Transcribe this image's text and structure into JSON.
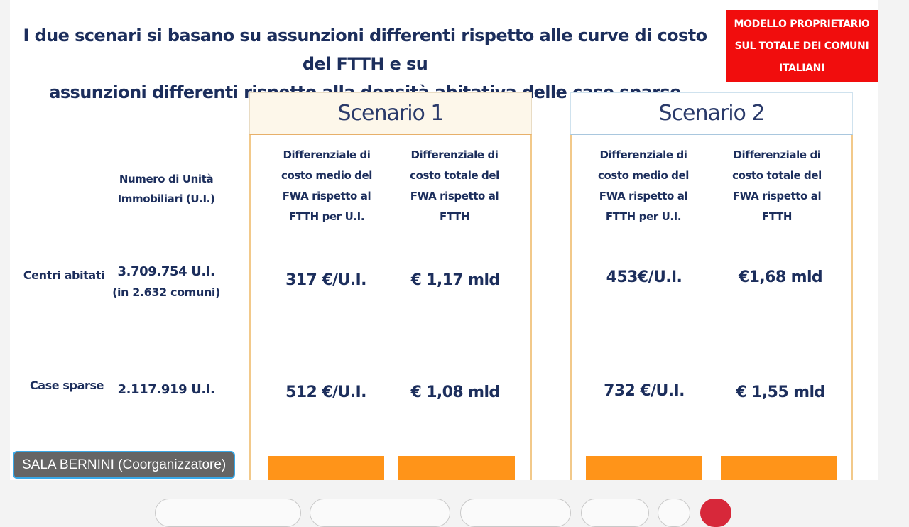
{
  "slide": {
    "title_line1": "I due scenari si basano su assunzioni differenti rispetto alle curve di costo del FTTH e su",
    "title_line2": "assunzioni differenti rispetto alla densità abitativa delle case sparse",
    "badge_line1": "Modello proprietario",
    "badge_line2": "sul totale dei comuni",
    "badge_line3": "italiani",
    "row_header_line1": "Numero di Unità",
    "row_header_line2": "Immobiliari (U.I.)",
    "rows": [
      {
        "label": "Centri abitati",
        "count_line1": "3.709.754 U.I.",
        "count_line2": "(in 2.632 comuni)"
      },
      {
        "label": "Case sparse",
        "count_line1": "2.117.919 U.I.",
        "count_line2": ""
      }
    ],
    "scenarios": [
      {
        "title": "Scenario 1",
        "col1": [
          "Differenziale di",
          "costo medio del",
          "FWA rispetto al",
          "FTTH per U.I."
        ],
        "col2": [
          "Differenziale di",
          "costo totale del",
          "FWA rispetto al",
          "FTTH"
        ],
        "row1": [
          "317 €/U.I.",
          "€ 1,17 mld"
        ],
        "row2": [
          "512 €/U.I.",
          "€ 1,08 mld"
        ]
      },
      {
        "title": "Scenario 2",
        "col1": [
          "Differenziale di",
          "costo medio del",
          "FWA rispetto al",
          "FTTH per U.I."
        ],
        "col2": [
          "Differenziale di",
          "costo totale del",
          "FWA rispetto al",
          "FTTH"
        ],
        "row1": [
          "453€/U.I.",
          "€1,68 mld"
        ],
        "row2": [
          "732 €/U.I.",
          "€ 1,55 mld"
        ]
      }
    ]
  },
  "participant": {
    "name": "SALA BERNINI (Coorganizzatore)"
  },
  "colors": {
    "title_navy": "#1c2e5c",
    "badge_red": "#f10d0d",
    "accent_orange": "#ff9419",
    "nametag_border": "#38a8e8"
  }
}
